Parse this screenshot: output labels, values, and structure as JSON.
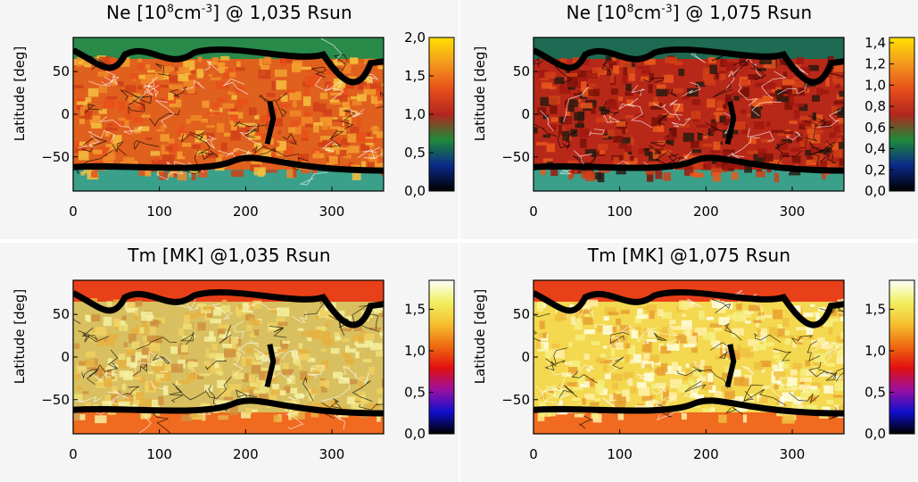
{
  "chart_data": [
    {
      "type": "heatmap",
      "title_prefix": "Ne",
      "title_unit": "[10",
      "title_exp": "8",
      "title_unit2": "cm",
      "title_exp2": "-3",
      "title_suffix": "] @ 1,035 Rsun",
      "ylabel": "Latitude [deg]",
      "x_ticks": [
        "0",
        "100",
        "200",
        "300"
      ],
      "x_values": [
        0,
        100,
        200,
        300
      ],
      "xlim": [
        0,
        360
      ],
      "y_ticks": [
        "50",
        "0",
        "−50"
      ],
      "y_values": [
        50,
        0,
        -50
      ],
      "ylim": [
        -90,
        90
      ],
      "colorbar": {
        "ticks": [
          "2,0",
          "1,5",
          "1,0",
          "0,5",
          "0,0"
        ],
        "values": [
          2.0,
          1.5,
          1.0,
          0.5,
          0.0
        ],
        "range": [
          0,
          2.0
        ],
        "colors": [
          "#000000",
          "#0a2a8a",
          "#1f8a3a",
          "#b3261e",
          "#e8501a",
          "#f39a1e",
          "#ffe000"
        ]
      }
    },
    {
      "type": "heatmap",
      "title_prefix": "Ne",
      "title_unit": "[10",
      "title_exp": "8",
      "title_unit2": "cm",
      "title_exp2": "-3",
      "title_suffix": "] @ 1,075 Rsun",
      "ylabel": "Latitude [deg]",
      "x_ticks": [
        "0",
        "100",
        "200",
        "300"
      ],
      "x_values": [
        0,
        100,
        200,
        300
      ],
      "xlim": [
        0,
        360
      ],
      "y_ticks": [
        "50",
        "0",
        "−50"
      ],
      "y_values": [
        50,
        0,
        -50
      ],
      "ylim": [
        -90,
        90
      ],
      "colorbar": {
        "ticks": [
          "1,4",
          "1,2",
          "1,0",
          "0,8",
          "0,6",
          "0,4",
          "0,2",
          "0,0"
        ],
        "values": [
          1.4,
          1.2,
          1.0,
          0.8,
          0.6,
          0.4,
          0.2,
          0.0
        ],
        "range": [
          0,
          1.45
        ],
        "colors": [
          "#000000",
          "#0a2a8a",
          "#1f8a3a",
          "#b3261e",
          "#e8501a",
          "#f39a1e",
          "#ffe000"
        ]
      }
    },
    {
      "type": "heatmap",
      "title_prefix": "Tm",
      "title_unit": "[MK]",
      "title_suffix": "@1,035 Rsun",
      "ylabel": "Latitude [deg]",
      "x_ticks": [
        "0",
        "100",
        "200",
        "300"
      ],
      "x_values": [
        0,
        100,
        200,
        300
      ],
      "xlim": [
        0,
        360
      ],
      "y_ticks": [
        "50",
        "0",
        "−50"
      ],
      "y_values": [
        50,
        0,
        -50
      ],
      "ylim": [
        -90,
        90
      ],
      "colorbar": {
        "ticks": [
          "1,5",
          "1,0",
          "0,5",
          "0,0"
        ],
        "values": [
          1.5,
          1.0,
          0.5,
          0.0
        ],
        "range": [
          0,
          1.85
        ],
        "colors": [
          "#000000",
          "#1010d0",
          "#9a10a0",
          "#e01010",
          "#f06a10",
          "#f5c030",
          "#f0f060",
          "#ffffff"
        ]
      }
    },
    {
      "type": "heatmap",
      "title_prefix": "Tm",
      "title_unit": "[MK]",
      "title_suffix": "@1,075 Rsun",
      "ylabel": "Latitude [deg]",
      "x_ticks": [
        "0",
        "100",
        "200",
        "300"
      ],
      "x_values": [
        0,
        100,
        200,
        300
      ],
      "xlim": [
        0,
        360
      ],
      "y_ticks": [
        "50",
        "0",
        "−50"
      ],
      "y_values": [
        50,
        0,
        -50
      ],
      "ylim": [
        -90,
        90
      ],
      "colorbar": {
        "ticks": [
          "1,5",
          "1,0",
          "0,5",
          "0,0"
        ],
        "values": [
          1.5,
          1.0,
          0.5,
          0.0
        ],
        "range": [
          0,
          1.85
        ],
        "colors": [
          "#000000",
          "#1010d0",
          "#9a10a0",
          "#e01010",
          "#f06a10",
          "#f5c030",
          "#f0f060",
          "#ffffff"
        ]
      }
    }
  ]
}
